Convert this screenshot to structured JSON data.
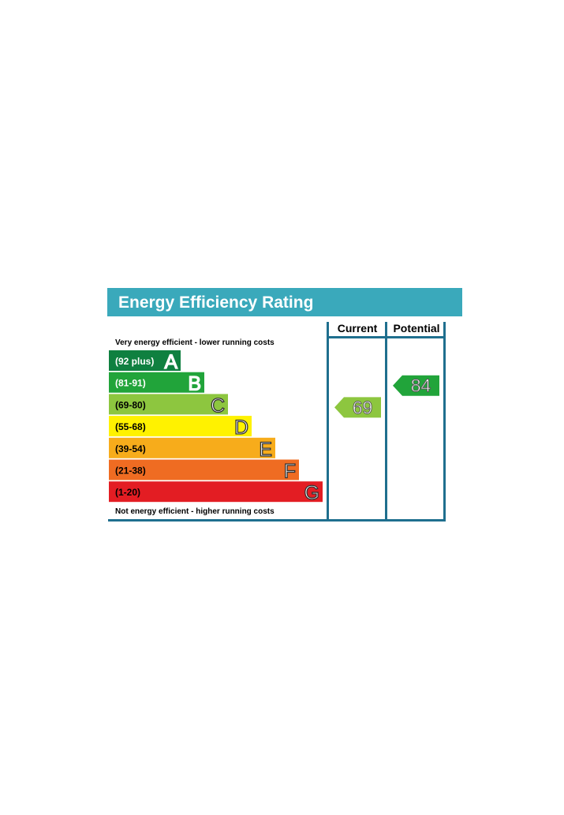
{
  "chart_data": {
    "type": "bar",
    "title": "Energy Efficiency Rating",
    "columns": [
      "Current",
      "Potential"
    ],
    "top_note": "Very energy efficient - lower running costs",
    "bottom_note": "Not energy efficient - higher running costs",
    "bands": [
      {
        "letter": "A",
        "range": "(92 plus)",
        "color": "#0f8040",
        "text_color": "#ffffff"
      },
      {
        "letter": "B",
        "range": "(81-91)",
        "color": "#21a43a",
        "text_color": "#ffffff"
      },
      {
        "letter": "C",
        "range": "(69-80)",
        "color": "#8dc63f",
        "text_color": "#000000"
      },
      {
        "letter": "D",
        "range": "(55-68)",
        "color": "#fff200",
        "text_color": "#000000"
      },
      {
        "letter": "E",
        "range": "(39-54)",
        "color": "#f7ac1b",
        "text_color": "#000000"
      },
      {
        "letter": "F",
        "range": "(21-38)",
        "color": "#ef6c22",
        "text_color": "#000000"
      },
      {
        "letter": "G",
        "range": "(1-20)",
        "color": "#e31d23",
        "text_color": "#000000"
      }
    ],
    "ratings": [
      {
        "name": "Current",
        "value": 69,
        "band": "C",
        "color": "#8dc63f"
      },
      {
        "name": "Potential",
        "value": 84,
        "band": "B",
        "color": "#21a43a"
      }
    ],
    "colors": {
      "header": "#3aa9bb",
      "frame": "#1f6f8e"
    }
  }
}
